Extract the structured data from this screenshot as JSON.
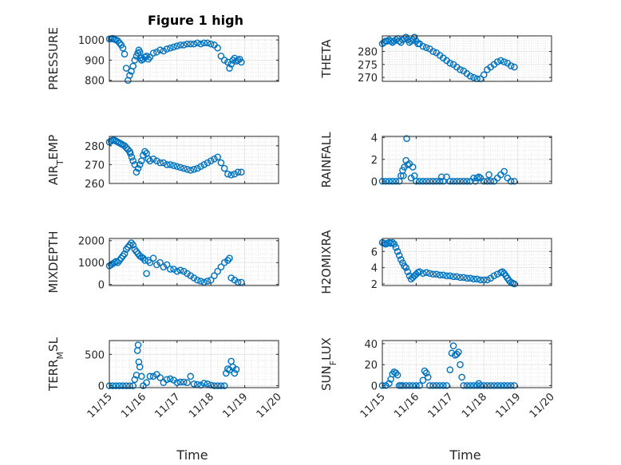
{
  "figure_title": "Figure 1 high",
  "colors": {
    "marker": "#0072BD",
    "grid": "#e6e6e6",
    "axis": "#262626"
  },
  "chart_data": [
    {
      "type": "scatter",
      "title": "Figure 1 high",
      "xlabel": "",
      "ylabel": "PRESSURE",
      "ylabel_parts": [
        [
          "PRESSURE",
          ""
        ]
      ],
      "xlim": [
        0,
        5
      ],
      "ylim": [
        795,
        1020
      ],
      "yticks": [
        800,
        900,
        1000
      ],
      "grid": true,
      "xticks": [
        0,
        1,
        2,
        3,
        4,
        5
      ],
      "xticklabels": [
        "11/15",
        "11/16",
        "11/17",
        "11/18",
        "11/19",
        "11/20"
      ],
      "show_xticklabels": false,
      "x": [
        0,
        0.05,
        0.1,
        0.15,
        0.2,
        0.25,
        0.3,
        0.35,
        0.4,
        0.45,
        0.5,
        0.55,
        0.6,
        0.65,
        0.7,
        0.75,
        0.8,
        0.84,
        0.87,
        0.9,
        0.92,
        0.95,
        1.0,
        1.05,
        1.1,
        1.15,
        1.2,
        1.3,
        1.4,
        1.5,
        1.6,
        1.7,
        1.8,
        1.9,
        2.0,
        2.1,
        2.2,
        2.3,
        2.4,
        2.5,
        2.6,
        2.7,
        2.8,
        2.9,
        3.0,
        3.1,
        3.2,
        3.3,
        3.4,
        3.5,
        3.55,
        3.6,
        3.65,
        3.7,
        3.75,
        3.8,
        3.85,
        3.9
      ],
      "y": [
        1005,
        1005,
        1008,
        1003,
        1000,
        995,
        985,
        975,
        960,
        930,
        860,
        800,
        825,
        845,
        870,
        900,
        920,
        935,
        950,
        940,
        910,
        900,
        905,
        915,
        920,
        905,
        915,
        935,
        940,
        950,
        945,
        955,
        960,
        965,
        970,
        975,
        975,
        980,
        980,
        980,
        985,
        980,
        985,
        985,
        980,
        975,
        960,
        920,
        900,
        890,
        860,
        880,
        900,
        910,
        895,
        900,
        905,
        890
      ]
    },
    {
      "type": "scatter",
      "title": "",
      "xlabel": "",
      "ylabel": "THETA",
      "ylabel_parts": [
        [
          "THETA",
          ""
        ]
      ],
      "xlim": [
        0,
        5
      ],
      "ylim": [
        268.5,
        286
      ],
      "yticks": [
        270,
        275,
        280
      ],
      "grid": true,
      "xticks": [
        0,
        1,
        2,
        3,
        4,
        5
      ],
      "xticklabels": [
        "11/15",
        "11/16",
        "11/17",
        "11/18",
        "11/19",
        "11/20"
      ],
      "show_xticklabels": false,
      "x": [
        0,
        0.05,
        0.1,
        0.15,
        0.2,
        0.25,
        0.3,
        0.35,
        0.4,
        0.45,
        0.5,
        0.55,
        0.6,
        0.65,
        0.7,
        0.75,
        0.8,
        0.85,
        0.9,
        0.95,
        1.0,
        1.05,
        1.1,
        1.2,
        1.3,
        1.4,
        1.5,
        1.6,
        1.7,
        1.8,
        1.9,
        2.0,
        2.1,
        2.2,
        2.3,
        2.4,
        2.5,
        2.6,
        2.7,
        2.8,
        2.9,
        3.0,
        3.1,
        3.2,
        3.3,
        3.4,
        3.5,
        3.6,
        3.7,
        3.8,
        3.9
      ],
      "y": [
        283,
        283.5,
        284,
        284,
        284.5,
        284,
        283.5,
        284,
        284.5,
        285,
        284,
        283.5,
        284.5,
        285,
        285.5,
        284.5,
        283.5,
        284,
        284.5,
        285.5,
        284,
        283,
        283,
        282,
        281.5,
        281,
        280,
        279.5,
        278.5,
        277.5,
        276.5,
        275.5,
        275,
        274,
        273,
        272.5,
        271.5,
        270.5,
        270,
        269.5,
        269.5,
        271,
        273,
        274,
        275,
        276,
        276.5,
        276,
        275.5,
        274.5,
        274
      ]
    },
    {
      "type": "scatter",
      "title": "",
      "xlabel": "",
      "ylabel": "AIR_TEMP",
      "ylabel_parts": [
        [
          "AIR",
          ""
        ],
        [
          "T",
          "sub"
        ],
        [
          "EMP",
          ""
        ]
      ],
      "xlim": [
        0,
        5
      ],
      "ylim": [
        260,
        285
      ],
      "yticks": [
        260,
        270,
        280
      ],
      "grid": true,
      "xticks": [
        0,
        1,
        2,
        3,
        4,
        5
      ],
      "xticklabels": [
        "11/15",
        "11/16",
        "11/17",
        "11/18",
        "11/19",
        "11/20"
      ],
      "show_xticklabels": false,
      "x": [
        0,
        0.05,
        0.1,
        0.15,
        0.2,
        0.25,
        0.3,
        0.35,
        0.4,
        0.45,
        0.5,
        0.55,
        0.6,
        0.62,
        0.66,
        0.7,
        0.75,
        0.8,
        0.85,
        0.9,
        0.95,
        1.0,
        1.05,
        1.1,
        1.15,
        1.2,
        1.3,
        1.4,
        1.5,
        1.6,
        1.7,
        1.8,
        1.9,
        2.0,
        2.1,
        2.2,
        2.3,
        2.4,
        2.5,
        2.6,
        2.7,
        2.8,
        2.9,
        3.0,
        3.1,
        3.2,
        3.3,
        3.4,
        3.5,
        3.6,
        3.7,
        3.8,
        3.9
      ],
      "y": [
        282,
        282.5,
        283,
        283,
        282.5,
        282,
        281.5,
        281,
        280.5,
        280,
        279,
        278,
        277,
        276,
        274,
        272,
        270,
        266,
        268,
        270,
        272,
        275,
        277,
        276,
        273,
        272,
        273,
        272,
        271,
        271,
        270,
        270,
        269.5,
        269,
        268.5,
        268,
        267.5,
        267,
        267.5,
        268,
        269,
        270,
        271,
        272,
        273,
        274,
        271,
        268,
        265,
        264.5,
        265,
        266,
        266
      ]
    },
    {
      "type": "scatter",
      "title": "",
      "xlabel": "",
      "ylabel": "RAINFALL",
      "ylabel_parts": [
        [
          "RAINFALL",
          ""
        ]
      ],
      "xlim": [
        0,
        5
      ],
      "ylim": [
        -0.2,
        4.1
      ],
      "yticks": [
        0,
        2,
        4
      ],
      "grid": true,
      "xticks": [
        0,
        1,
        2,
        3,
        4,
        5
      ],
      "xticklabels": [
        "11/15",
        "11/16",
        "11/17",
        "11/18",
        "11/19",
        "11/20"
      ],
      "show_xticklabels": false,
      "x": [
        0,
        0.1,
        0.2,
        0.3,
        0.4,
        0.5,
        0.55,
        0.6,
        0.62,
        0.65,
        0.7,
        0.72,
        0.75,
        0.8,
        0.85,
        0.9,
        0.95,
        1.0,
        1.1,
        1.2,
        1.3,
        1.4,
        1.5,
        1.6,
        1.7,
        1.75,
        1.8,
        1.9,
        2.0,
        2.1,
        2.2,
        2.3,
        2.4,
        2.5,
        2.6,
        2.7,
        2.75,
        2.8,
        2.85,
        2.9,
        3.0,
        3.1,
        3.15,
        3.2,
        3.3,
        3.4,
        3.5,
        3.6,
        3.7,
        3.8,
        3.9
      ],
      "y": [
        0,
        0,
        0,
        0,
        0,
        0,
        0.5,
        1.0,
        0.5,
        1.3,
        1.9,
        3.9,
        1.5,
        1.6,
        0.3,
        1.3,
        0.5,
        0,
        0,
        0,
        0,
        0,
        0,
        0,
        0,
        0.4,
        0,
        0.4,
        0,
        0,
        0,
        0,
        0,
        0,
        0,
        0.3,
        0,
        0.3,
        0.4,
        0.3,
        0,
        0,
        0.6,
        0,
        0,
        0.3,
        0.6,
        0.9,
        0.3,
        0,
        0
      ]
    },
    {
      "type": "scatter",
      "title": "",
      "xlabel": "",
      "ylabel": "MIXDEPTH",
      "ylabel_parts": [
        [
          "MIXDEPTH",
          ""
        ]
      ],
      "xlim": [
        0,
        5
      ],
      "ylim": [
        -50,
        2100
      ],
      "yticks": [
        0,
        1000,
        2000
      ],
      "grid": true,
      "xticks": [
        0,
        1,
        2,
        3,
        4,
        5
      ],
      "xticklabels": [
        "11/15",
        "11/16",
        "11/17",
        "11/18",
        "11/19",
        "11/20"
      ],
      "show_xticklabels": false,
      "x": [
        0,
        0.05,
        0.1,
        0.15,
        0.2,
        0.25,
        0.3,
        0.35,
        0.4,
        0.45,
        0.5,
        0.55,
        0.6,
        0.65,
        0.7,
        0.75,
        0.8,
        0.85,
        0.9,
        0.95,
        1.0,
        1.05,
        1.1,
        1.15,
        1.2,
        1.3,
        1.4,
        1.5,
        1.6,
        1.7,
        1.8,
        1.9,
        2.0,
        2.1,
        2.2,
        2.3,
        2.4,
        2.5,
        2.6,
        2.7,
        2.8,
        2.9,
        3.0,
        3.1,
        3.2,
        3.3,
        3.4,
        3.5,
        3.55,
        3.6,
        3.7,
        3.8,
        3.9
      ],
      "y": [
        850,
        900,
        950,
        1000,
        1050,
        1000,
        1100,
        1200,
        1300,
        1400,
        1600,
        1700,
        1800,
        1900,
        1800,
        1600,
        1500,
        1400,
        1300,
        1250,
        1200,
        1100,
        500,
        1100,
        1000,
        1200,
        900,
        1000,
        800,
        900,
        700,
        700,
        600,
        650,
        600,
        500,
        400,
        300,
        200,
        150,
        100,
        150,
        200,
        400,
        600,
        800,
        1000,
        1100,
        1200,
        300,
        200,
        100,
        100
      ]
    },
    {
      "type": "scatter",
      "title": "",
      "xlabel": "",
      "ylabel": "H2OMIXRA",
      "ylabel_parts": [
        [
          "H2OMIXRA",
          ""
        ]
      ],
      "xlim": [
        0,
        5
      ],
      "ylim": [
        1.8,
        7.6
      ],
      "yticks": [
        2,
        4,
        6
      ],
      "grid": true,
      "xticks": [
        0,
        1,
        2,
        3,
        4,
        5
      ],
      "xticklabels": [
        "11/15",
        "11/16",
        "11/17",
        "11/18",
        "11/19",
        "11/20"
      ],
      "show_xticklabels": false,
      "x": [
        0,
        0.05,
        0.1,
        0.15,
        0.2,
        0.25,
        0.3,
        0.35,
        0.4,
        0.45,
        0.5,
        0.55,
        0.6,
        0.65,
        0.7,
        0.75,
        0.8,
        0.85,
        0.9,
        0.95,
        1.0,
        1.05,
        1.1,
        1.2,
        1.3,
        1.4,
        1.5,
        1.6,
        1.7,
        1.8,
        1.9,
        2.0,
        2.1,
        2.2,
        2.3,
        2.4,
        2.5,
        2.6,
        2.7,
        2.8,
        2.9,
        3.0,
        3.1,
        3.2,
        3.3,
        3.4,
        3.5,
        3.55,
        3.6,
        3.65,
        3.7,
        3.75,
        3.8,
        3.85,
        3.9
      ],
      "y": [
        7.1,
        7.0,
        6.9,
        7.0,
        7.1,
        7.0,
        7.1,
        6.9,
        6.5,
        6.0,
        5.5,
        5.0,
        4.6,
        4.2,
        4.0,
        3.5,
        3.0,
        2.6,
        2.8,
        3.0,
        3.2,
        3.4,
        3.5,
        3.3,
        3.4,
        3.3,
        3.2,
        3.2,
        3.1,
        3.1,
        3.0,
        3.0,
        2.9,
        2.9,
        2.8,
        2.8,
        2.7,
        2.7,
        2.6,
        2.6,
        2.5,
        2.5,
        2.5,
        2.7,
        3.0,
        3.2,
        3.4,
        3.5,
        3.3,
        3.0,
        2.7,
        2.4,
        2.2,
        2.1,
        2.0
      ]
    },
    {
      "type": "scatter",
      "title": "",
      "xlabel": "Time",
      "ylabel": "TERR_MSL",
      "ylabel_parts": [
        [
          "TERR",
          ""
        ],
        [
          "M",
          "sub"
        ],
        [
          "SL",
          ""
        ]
      ],
      "xlim": [
        0,
        5
      ],
      "ylim": [
        -30,
        720
      ],
      "yticks": [
        0,
        500
      ],
      "grid": true,
      "xticks": [
        0,
        1,
        2,
        3,
        4,
        5
      ],
      "xticklabels": [
        "11/15",
        "11/16",
        "11/17",
        "11/18",
        "11/19",
        "11/20"
      ],
      "show_xticklabels": true,
      "x": [
        0,
        0.1,
        0.2,
        0.3,
        0.4,
        0.5,
        0.6,
        0.7,
        0.75,
        0.8,
        0.83,
        0.85,
        0.87,
        0.9,
        0.95,
        1.0,
        1.1,
        1.2,
        1.3,
        1.4,
        1.5,
        1.6,
        1.7,
        1.8,
        1.9,
        2.0,
        2.1,
        2.2,
        2.3,
        2.4,
        2.5,
        2.6,
        2.7,
        2.8,
        2.9,
        3.0,
        3.1,
        3.2,
        3.3,
        3.4,
        3.45,
        3.5,
        3.55,
        3.6,
        3.65,
        3.7,
        3.75
      ],
      "y": [
        0,
        0,
        0,
        0,
        0,
        0,
        0,
        0,
        100,
        170,
        560,
        650,
        380,
        300,
        150,
        0,
        50,
        150,
        150,
        180,
        130,
        50,
        100,
        110,
        90,
        50,
        60,
        60,
        50,
        150,
        30,
        20,
        10,
        40,
        30,
        10,
        0,
        0,
        0,
        0,
        200,
        270,
        250,
        390,
        300,
        200,
        260
      ]
    },
    {
      "type": "scatter",
      "title": "",
      "xlabel": "Time",
      "ylabel": "SUN_FLUX",
      "ylabel_parts": [
        [
          "SUN",
          ""
        ],
        [
          "F",
          "sub"
        ],
        [
          "LUX",
          ""
        ]
      ],
      "xlim": [
        0,
        5
      ],
      "ylim": [
        -2,
        43
      ],
      "yticks": [
        0,
        20,
        40
      ],
      "grid": true,
      "xticks": [
        0,
        1,
        2,
        3,
        4,
        5
      ],
      "xticklabels": [
        "11/15",
        "11/16",
        "11/17",
        "11/18",
        "11/19",
        "11/20"
      ],
      "show_xticklabels": true,
      "x": [
        0,
        0.1,
        0.2,
        0.25,
        0.3,
        0.35,
        0.4,
        0.45,
        0.5,
        0.55,
        0.6,
        0.7,
        0.8,
        0.9,
        1.0,
        1.1,
        1.2,
        1.25,
        1.3,
        1.35,
        1.4,
        1.5,
        1.6,
        1.7,
        1.8,
        1.9,
        2.0,
        2.05,
        2.1,
        2.15,
        2.2,
        2.25,
        2.3,
        2.35,
        2.4,
        2.5,
        2.6,
        2.7,
        2.8,
        2.85,
        2.9,
        3.0,
        3.1,
        3.2,
        3.3,
        3.4,
        3.5,
        3.6,
        3.7,
        3.8,
        3.9
      ],
      "y": [
        0,
        0,
        2,
        6,
        11,
        13,
        12,
        10,
        0,
        0,
        0,
        0,
        0,
        0,
        0,
        0,
        5,
        14,
        12,
        8,
        0,
        0,
        0,
        0,
        0,
        0,
        15,
        31,
        38,
        29,
        30,
        32,
        20,
        8,
        0,
        0,
        0,
        0,
        0,
        2,
        0,
        0,
        0,
        0,
        0,
        0,
        0,
        0,
        0,
        0,
        0
      ]
    }
  ]
}
